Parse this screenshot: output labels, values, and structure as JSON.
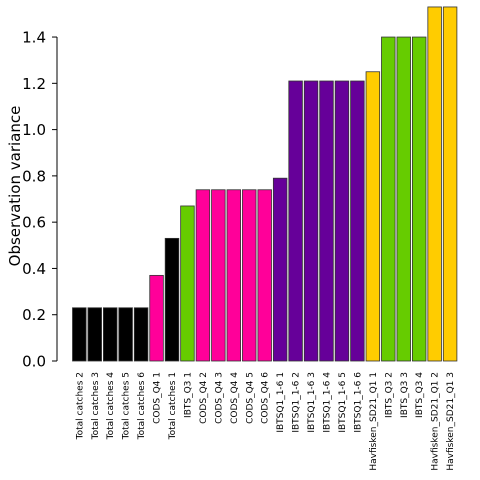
{
  "chart_data": {
    "type": "bar",
    "ylabel": "Observation variance",
    "xlabel": "",
    "ylim": [
      0,
      1.5
    ],
    "yticks": [
      0.0,
      0.2,
      0.4,
      0.6,
      0.8,
      1.0,
      1.2,
      1.4
    ],
    "ytick_labels": [
      "0.0",
      "0.2",
      "0.4",
      "0.6",
      "0.8",
      "1.0",
      "1.2",
      "1.4"
    ],
    "grid": false,
    "categories": [
      "Total catches 2",
      "Total catches 3",
      "Total catches 4",
      "Total catches 5",
      "Total catches 6",
      "CODS_Q4 1",
      "Total catches 1",
      "IBTS_Q3 1",
      "CODS_Q4 2",
      "CODS_Q4 3",
      "CODS_Q4 4",
      "CODS_Q4 5",
      "CODS_Q4 6",
      "IBTSQ1_1-6 1",
      "IBTSQ1_1-6 2",
      "IBTSQ1_1-6 3",
      "IBTSQ1_1-6 4",
      "IBTSQ1_1-6 5",
      "IBTSQ1_1-6 6",
      "Havfisken_SD21_Q1 1",
      "IBTS_Q3 2",
      "IBTS_Q3 3",
      "IBTS_Q3 4",
      "Havfisken_SD21_Q1 2",
      "Havfisken_SD21_Q1 3"
    ],
    "values": [
      0.23,
      0.23,
      0.23,
      0.23,
      0.23,
      0.37,
      0.53,
      0.67,
      0.74,
      0.74,
      0.74,
      0.74,
      0.74,
      0.79,
      1.21,
      1.21,
      1.21,
      1.21,
      1.21,
      1.25,
      1.4,
      1.4,
      1.4,
      1.53,
      1.53
    ],
    "colors": [
      "#000000",
      "#000000",
      "#000000",
      "#000000",
      "#000000",
      "#ff0099",
      "#000000",
      "#66cc00",
      "#ff0099",
      "#ff0099",
      "#ff0099",
      "#ff0099",
      "#ff0099",
      "#660099",
      "#660099",
      "#660099",
      "#660099",
      "#660099",
      "#660099",
      "#ffcc00",
      "#66cc00",
      "#66cc00",
      "#66cc00",
      "#ffcc00",
      "#ffcc00"
    ]
  }
}
